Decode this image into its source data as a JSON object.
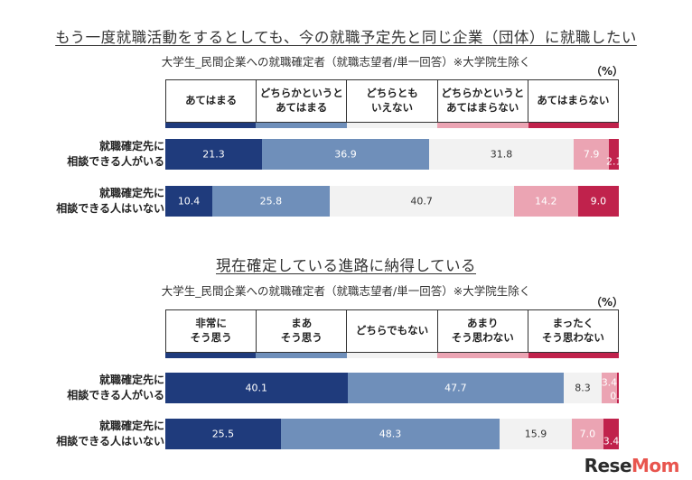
{
  "colors": [
    "#1f3b7c",
    "#6f8fba",
    "#f2f2f2",
    "#eba4b3",
    "#c0224c"
  ],
  "label_colors": [
    "#ffffff",
    "#ffffff",
    "#333333",
    "#ffffff",
    "#ffffff"
  ],
  "chart_data": [
    {
      "type": "bar",
      "orientation": "horizontal-stacked-100",
      "title": "もう一度就職活動をするとしても、今の就職予定先と同じ企業（団体）に就職したい",
      "subtitle": "大学生_民間企業への就職確定者（就職志望者/単一回答）※大学院生除く",
      "unit": "（%）",
      "categories": [
        "就職確定先に\n相談できる人がいる",
        "就職確定先に\n相談できる人はいない"
      ],
      "series": [
        {
          "name": "あてはまる",
          "values": [
            21.3,
            10.4
          ]
        },
        {
          "name": "どちらかというと\nあてはまる",
          "values": [
            36.9,
            25.8
          ]
        },
        {
          "name": "どちらとも\nいえない",
          "values": [
            31.8,
            40.7
          ]
        },
        {
          "name": "どちらかというと\nあてはまらない",
          "values": [
            7.9,
            14.2
          ]
        },
        {
          "name": "あてはまらない",
          "values": [
            2.1,
            9.0
          ]
        }
      ],
      "value_labels": [
        [
          "21.3",
          "36.9",
          "31.8",
          "7.9",
          "2.1"
        ],
        [
          "10.4",
          "25.8",
          "40.7",
          "14.2",
          "9.0"
        ]
      ]
    },
    {
      "type": "bar",
      "orientation": "horizontal-stacked-100",
      "title": "現在確定している進路に納得している",
      "subtitle": "大学生_民間企業への就職確定者（就職志望者/単一回答）※大学院生除く",
      "unit": "（%）",
      "categories": [
        "就職確定先に\n相談できる人がいる",
        "就職確定先に\n相談できる人はいない"
      ],
      "series": [
        {
          "name": "非常に\nそう思う",
          "values": [
            40.1,
            25.5
          ]
        },
        {
          "name": "まあ\nそう思う",
          "values": [
            47.7,
            48.3
          ]
        },
        {
          "name": "どちらでもない",
          "values": [
            8.3,
            15.9
          ]
        },
        {
          "name": "あまり\nそう思わない",
          "values": [
            3.4,
            7.0
          ]
        },
        {
          "name": "まったく\nそう思わない",
          "values": [
            0.4,
            3.4
          ]
        }
      ],
      "value_labels": [
        [
          "40.1",
          "47.7",
          "8.3",
          "3.4",
          "0.4"
        ],
        [
          "25.5",
          "48.3",
          "15.9",
          "7.0",
          "3.4"
        ]
      ]
    }
  ],
  "watermark": {
    "part1": "Rese",
    "part2": "Mom"
  }
}
